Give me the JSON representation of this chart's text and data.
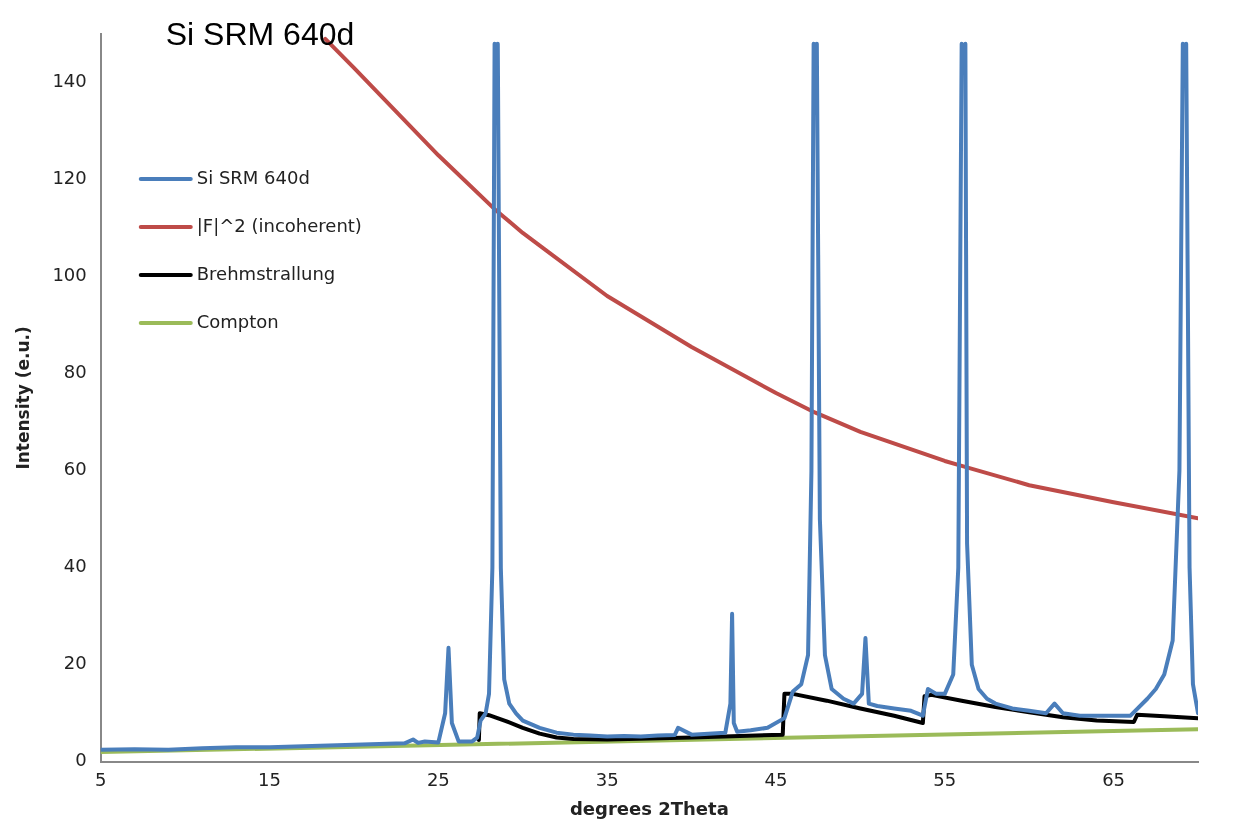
{
  "chart_data": {
    "type": "line",
    "title": "Si SRM 640d",
    "xlabel": "degrees 2Theta",
    "ylabel": "Intensity (e.u.)",
    "xlim": [
      5,
      70
    ],
    "xticks": [
      5,
      15,
      25,
      35,
      45,
      55,
      65
    ],
    "ylim": [
      0,
      150
    ],
    "yticks": [
      0,
      20,
      40,
      60,
      80,
      100,
      120,
      140
    ],
    "grid": false,
    "legend": "top left",
    "marker": "none",
    "line_style": "solid",
    "series": [
      {
        "name": "Si SRM 640d",
        "color": "#4a7ebb",
        "x": [
          5,
          7,
          9,
          11,
          13,
          15,
          17,
          19,
          21,
          23,
          23.5,
          23.8,
          24.2,
          25,
          25.4,
          25.6,
          25.8,
          26.2,
          27,
          27.3,
          27.5,
          27.8,
          28.0,
          28.2,
          28.33,
          28.42,
          28.52,
          28.7,
          28.9,
          29.2,
          29.6,
          30,
          31,
          32,
          33,
          34,
          35,
          36,
          37,
          38,
          39,
          39.2,
          40,
          41,
          42,
          42.3,
          42.4,
          42.5,
          42.7,
          43.5,
          44.5,
          45.5,
          46,
          46.5,
          46.9,
          47.1,
          47.23,
          47.32,
          47.42,
          47.6,
          47.9,
          48.3,
          49,
          49.6,
          50.1,
          50.3,
          50.5,
          51,
          52,
          53,
          53.7,
          54,
          54.5,
          55,
          55.5,
          55.8,
          56.0,
          56.13,
          56.22,
          56.32,
          56.6,
          57,
          57.5,
          58,
          59,
          60,
          61,
          61.5,
          62,
          63,
          64,
          65,
          66,
          67,
          67.5,
          68,
          68.5,
          68.9,
          69.1,
          69.2,
          69.3,
          69.5,
          69.7,
          70
        ],
        "values": [
          2.5,
          2.6,
          2.5,
          2.8,
          3,
          3,
          3.2,
          3.4,
          3.6,
          3.8,
          4.6,
          3.9,
          4.2,
          4,
          10,
          23.5,
          8,
          4.2,
          4.2,
          5,
          8.5,
          10,
          14,
          40,
          148,
          null,
          148,
          40,
          17,
          12,
          10,
          8.5,
          7,
          6,
          5.6,
          5.4,
          5.2,
          5.3,
          5.2,
          5.4,
          5.5,
          7,
          5.6,
          5.8,
          6,
          12,
          30.5,
          8,
          6.2,
          6.5,
          7,
          9,
          14.5,
          16,
          22,
          60,
          148,
          null,
          148,
          50,
          22,
          15,
          13,
          12,
          14,
          25.5,
          12,
          11.5,
          11,
          10.5,
          9.5,
          15,
          14,
          14,
          18,
          40,
          148,
          null,
          148,
          45,
          20,
          15,
          13,
          12,
          11,
          10.5,
          10,
          12,
          10,
          9.5,
          9.5,
          9.5,
          9.5,
          13,
          15,
          18,
          25,
          60,
          148,
          null,
          148,
          40,
          16,
          10
        ]
      },
      {
        "name": "|F|^2 (incoherent)",
        "color": "#be4b48",
        "x": [
          18.3,
          20,
          25,
          28.3,
          30,
          35,
          40,
          45,
          47.3,
          50,
          55,
          56,
          60,
          65,
          70
        ],
        "values": [
          149,
          143,
          125,
          114,
          109,
          96,
          85.5,
          76,
          72,
          68,
          62,
          61,
          57,
          53.5,
          50.2
        ]
      },
      {
        "name": "Brehmstrallung",
        "color": "#000000",
        "x": [
          27.4,
          27.45,
          28,
          29,
          30,
          31,
          32,
          33,
          35,
          40,
          45.4,
          45.5,
          46,
          48,
          50,
          52,
          53.7,
          53.8,
          54.2,
          56,
          58,
          60,
          62,
          64,
          66.2,
          66.4,
          68,
          70
        ],
        "values": [
          4.5,
          10,
          9.6,
          8.4,
          7,
          5.8,
          5,
          4.7,
          4.6,
          5,
          5.6,
          14,
          14,
          12.6,
          11,
          9.5,
          8,
          13.5,
          13.8,
          12.6,
          11.3,
          10.2,
          9.2,
          8.5,
          8.2,
          9.7,
          9.4,
          9
        ]
      },
      {
        "name": "Compton",
        "color": "#9bbb59",
        "x": [
          5,
          70
        ],
        "values": [
          2,
          6.7
        ]
      }
    ]
  }
}
